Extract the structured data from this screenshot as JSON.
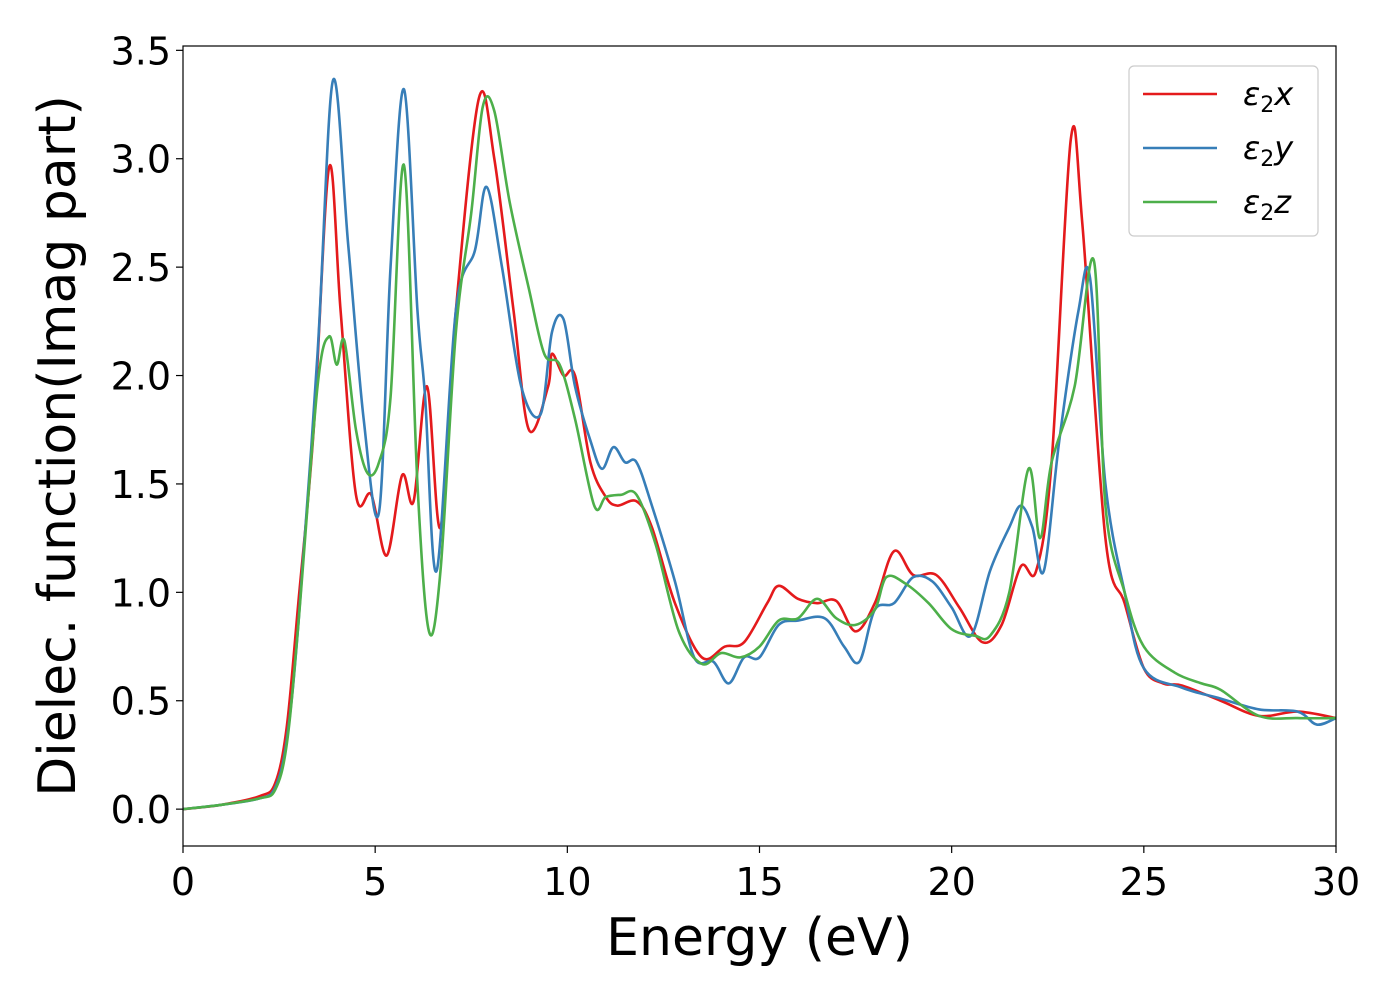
{
  "chart_data": {
    "type": "line",
    "title": "",
    "xlabel": "Energy (eV)",
    "ylabel": "Dielec. function(Imag part)",
    "xlim": [
      0,
      30
    ],
    "ylim": [
      -0.17,
      3.52
    ],
    "xticks": [
      0,
      5,
      10,
      15,
      20,
      25,
      30
    ],
    "xtick_labels": [
      "0",
      "5",
      "10",
      "15",
      "20",
      "25",
      "30"
    ],
    "yticks": [
      0.0,
      0.5,
      1.0,
      1.5,
      2.0,
      2.5,
      3.0,
      3.5
    ],
    "ytick_labels": [
      "0.0",
      "0.5",
      "1.0",
      "1.5",
      "2.0",
      "2.5",
      "3.0",
      "3.5"
    ],
    "grid": false,
    "legend_position": "top-right",
    "series": [
      {
        "name": "ε2x",
        "legend_base": "ε",
        "legend_sub": "2",
        "legend_tail": "x",
        "color": "#e41a1c",
        "x": [
          0,
          1,
          2,
          2.4,
          2.7,
          3.0,
          3.4,
          3.8,
          4.1,
          4.5,
          4.9,
          5.3,
          5.7,
          6.0,
          6.35,
          6.7,
          7.1,
          7.7,
          8.1,
          8.6,
          9.0,
          9.5,
          9.6,
          9.9,
          10.2,
          10.6,
          11.0,
          11.3,
          11.8,
          12.2,
          12.8,
          13.5,
          14.1,
          14.6,
          15.2,
          15.5,
          16.0,
          16.5,
          17.0,
          17.5,
          18.0,
          18.5,
          19.0,
          19.6,
          20.2,
          20.8,
          21.3,
          21.8,
          22.2,
          22.6,
          23.1,
          23.4,
          24.0,
          24.5,
          25.0,
          25.5,
          26.0,
          27.0,
          28.0,
          29.0,
          30.0
        ],
        "y": [
          0,
          0.02,
          0.06,
          0.12,
          0.38,
          0.95,
          1.75,
          2.96,
          2.3,
          1.45,
          1.45,
          1.17,
          1.54,
          1.42,
          1.95,
          1.3,
          2.3,
          3.28,
          3.0,
          2.3,
          1.75,
          1.95,
          2.1,
          2.0,
          2.0,
          1.6,
          1.44,
          1.4,
          1.42,
          1.3,
          0.95,
          0.7,
          0.75,
          0.77,
          0.95,
          1.03,
          0.97,
          0.95,
          0.96,
          0.82,
          0.95,
          1.19,
          1.08,
          1.08,
          0.93,
          0.77,
          0.85,
          1.12,
          1.1,
          1.6,
          3.09,
          2.7,
          1.25,
          0.95,
          0.65,
          0.58,
          0.57,
          0.5,
          0.43,
          0.45,
          0.42
        ]
      },
      {
        "name": "ε2y",
        "legend_base": "ε",
        "legend_sub": "2",
        "legend_tail": "y",
        "color": "#377eb8",
        "x": [
          0,
          1,
          2,
          2.4,
          2.7,
          3.0,
          3.5,
          3.9,
          4.3,
          4.7,
          5.1,
          5.4,
          5.75,
          6.1,
          6.3,
          6.6,
          7.1,
          7.6,
          7.9,
          8.3,
          8.8,
          9.3,
          9.6,
          9.9,
          10.2,
          10.6,
          10.9,
          11.2,
          11.5,
          11.8,
          12.2,
          12.8,
          13.3,
          13.8,
          14.2,
          14.6,
          15.0,
          15.5,
          16.0,
          16.7,
          17.2,
          17.6,
          18.0,
          18.5,
          19.0,
          19.5,
          20.0,
          20.5,
          21.0,
          21.5,
          21.8,
          22.1,
          22.4,
          22.8,
          23.3,
          23.6,
          24.0,
          24.5,
          25.0,
          26.0,
          27.0,
          28.0,
          29.0,
          29.5,
          30.0
        ],
        "y": [
          0,
          0.02,
          0.05,
          0.1,
          0.32,
          0.85,
          2.1,
          3.36,
          2.6,
          1.8,
          1.37,
          2.5,
          3.32,
          2.3,
          1.9,
          1.1,
          2.3,
          2.58,
          2.87,
          2.5,
          1.95,
          1.82,
          2.2,
          2.26,
          1.95,
          1.7,
          1.57,
          1.67,
          1.6,
          1.6,
          1.4,
          1.05,
          0.7,
          0.68,
          0.58,
          0.7,
          0.7,
          0.85,
          0.87,
          0.88,
          0.75,
          0.68,
          0.92,
          0.95,
          1.07,
          1.05,
          0.93,
          0.8,
          1.1,
          1.3,
          1.4,
          1.3,
          1.1,
          1.7,
          2.3,
          2.45,
          1.5,
          1.0,
          0.65,
          0.56,
          0.51,
          0.46,
          0.45,
          0.39,
          0.42
        ]
      },
      {
        "name": "ε2z",
        "legend_base": "ε",
        "legend_sub": "2",
        "legend_tail": "z",
        "color": "#4daf4a",
        "x": [
          0,
          1,
          2,
          2.4,
          2.7,
          3.0,
          3.5,
          3.8,
          4.0,
          4.2,
          4.5,
          4.8,
          5.1,
          5.4,
          5.75,
          6.1,
          6.4,
          6.7,
          7.1,
          7.5,
          7.8,
          8.1,
          8.5,
          9.0,
          9.4,
          9.8,
          10.2,
          10.7,
          11.0,
          11.4,
          11.8,
          12.3,
          12.9,
          13.5,
          14.0,
          14.5,
          15.0,
          15.5,
          16.0,
          16.5,
          17.0,
          17.5,
          18.0,
          18.3,
          18.8,
          19.4,
          20.0,
          20.6,
          21.0,
          21.5,
          22.0,
          22.3,
          22.6,
          23.2,
          23.7,
          24.0,
          24.5,
          25.0,
          25.8,
          26.5,
          27.0,
          28.0,
          29.0,
          30.0
        ],
        "y": [
          0,
          0.02,
          0.05,
          0.09,
          0.3,
          0.85,
          1.95,
          2.18,
          2.05,
          2.16,
          1.75,
          1.55,
          1.6,
          1.9,
          2.97,
          1.5,
          0.82,
          1.1,
          2.2,
          2.75,
          3.24,
          3.22,
          2.8,
          2.4,
          2.1,
          2.05,
          1.8,
          1.4,
          1.44,
          1.45,
          1.45,
          1.22,
          0.82,
          0.67,
          0.72,
          0.7,
          0.75,
          0.87,
          0.88,
          0.97,
          0.88,
          0.85,
          0.92,
          1.07,
          1.04,
          0.95,
          0.83,
          0.8,
          0.8,
          1.0,
          1.57,
          1.25,
          1.6,
          1.95,
          2.53,
          1.4,
          1.0,
          0.75,
          0.63,
          0.58,
          0.55,
          0.43,
          0.42,
          0.42
        ]
      }
    ]
  }
}
